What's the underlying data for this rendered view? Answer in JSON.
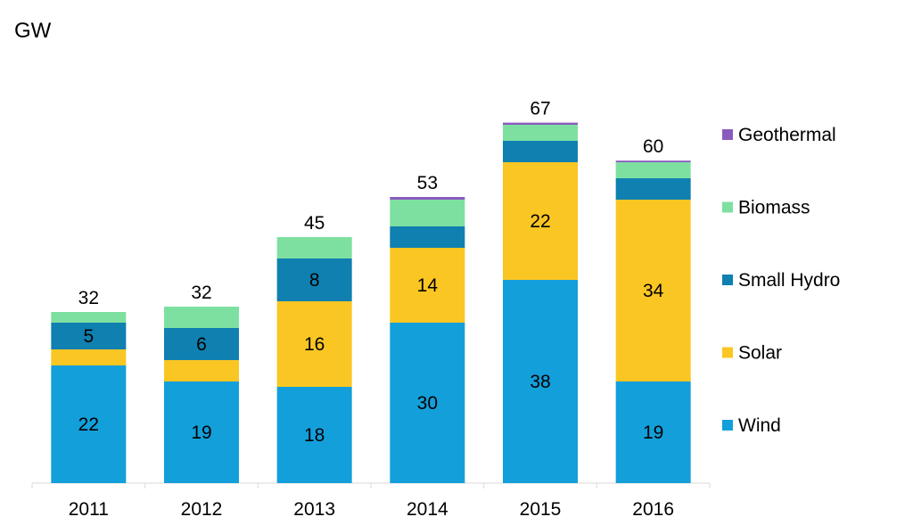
{
  "unit_label": "GW",
  "colors": {
    "Geothermal": "#8a5bbf",
    "Biomass": "#7de0a0",
    "Small Hydro": "#0f80b0",
    "Solar": "#fac623",
    "Wind": "#139fda"
  },
  "chart_data": {
    "type": "bar",
    "stacked": true,
    "title": "",
    "xlabel": "",
    "ylabel": "GW",
    "ylim": [
      0,
      70
    ],
    "grid": false,
    "legend_position": "right",
    "categories": [
      "2011",
      "2012",
      "2013",
      "2014",
      "2015",
      "2016"
    ],
    "series": [
      {
        "name": "Wind",
        "values": [
          22,
          19,
          18,
          30,
          38,
          19
        ],
        "labels": [
          "22",
          "19",
          "18",
          "30",
          "38",
          "19"
        ]
      },
      {
        "name": "Solar",
        "values": [
          3,
          4,
          16,
          14,
          22,
          34
        ],
        "labels": [
          "",
          "",
          "16",
          "14",
          "22",
          "34"
        ]
      },
      {
        "name": "Small Hydro",
        "values": [
          5,
          6,
          8,
          4,
          4,
          4
        ],
        "labels": [
          "5",
          "6",
          "8",
          "",
          "",
          ""
        ]
      },
      {
        "name": "Biomass",
        "values": [
          2,
          4,
          4,
          5,
          3,
          3
        ],
        "labels": [
          "",
          "",
          "",
          "",
          "",
          ""
        ]
      },
      {
        "name": "Geothermal",
        "values": [
          0,
          0,
          0,
          0.5,
          0.4,
          0.3
        ],
        "labels": [
          "",
          "",
          "",
          "",
          "",
          ""
        ]
      }
    ],
    "totals": [
      "32",
      "32",
      "45",
      "53",
      "67",
      "60"
    ],
    "legend": [
      "Geothermal",
      "Biomass",
      "Small Hydro",
      "Solar",
      "Wind"
    ]
  }
}
